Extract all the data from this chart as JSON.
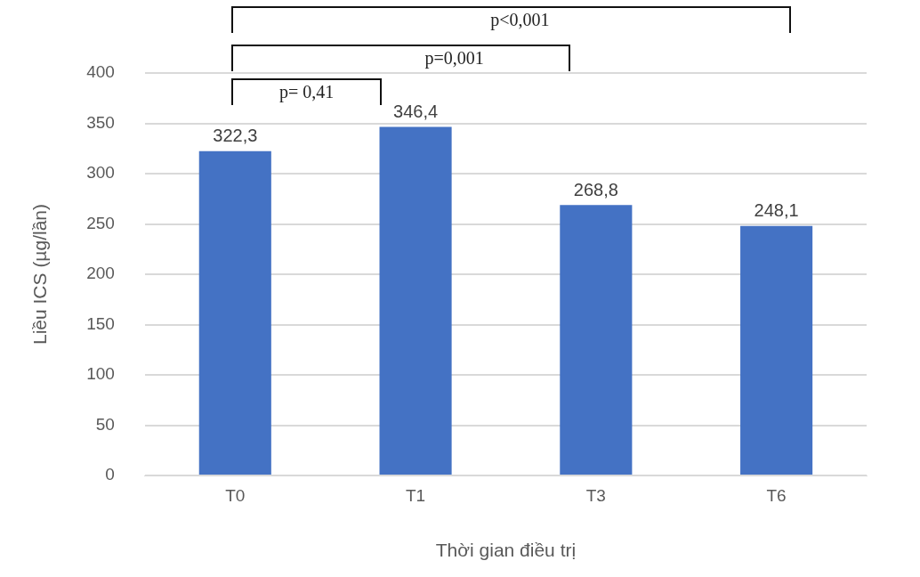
{
  "chart_data": {
    "type": "bar",
    "xlabel": "Thời gian điều trị",
    "ylabel": "Liều ICS (µg/lần)",
    "categories": [
      "T0",
      "T1",
      "T3",
      "T6"
    ],
    "series": [
      {
        "color": "#4472c4",
        "values": [
          322.3,
          346.4,
          268.8,
          248.1
        ],
        "value_labels": [
          "322,3",
          "346,4",
          "268,8",
          "248,1"
        ]
      }
    ],
    "ylim": [
      0,
      400
    ],
    "yticks": [
      0,
      50,
      100,
      150,
      200,
      250,
      300,
      350,
      400
    ],
    "grid": "y",
    "legend": false,
    "annotations": [
      "p= 0,41",
      "p=0,001",
      "p<0,001"
    ]
  }
}
